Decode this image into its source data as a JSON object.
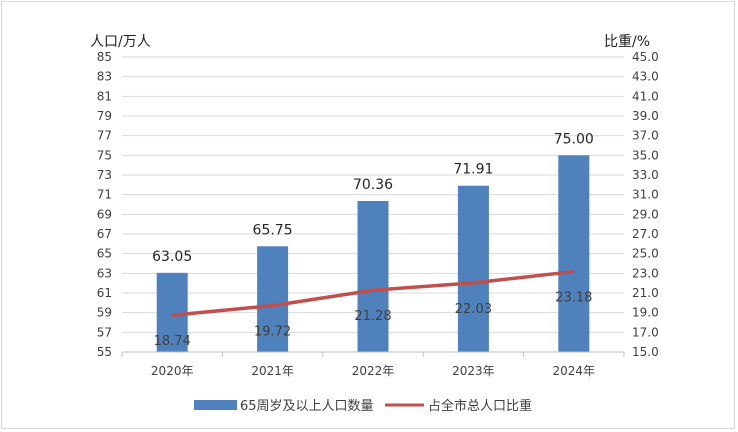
{
  "chart_data": {
    "type": "bar+line",
    "title": "",
    "categories": [
      "2020年",
      "2021年",
      "2022年",
      "2023年",
      "2024年"
    ],
    "series": [
      {
        "name": "65周岁及以上人口数量",
        "type": "bar",
        "axis": "left",
        "values": [
          63.05,
          65.75,
          70.36,
          71.91,
          75.0
        ],
        "labels": [
          "63.05",
          "65.75",
          "70.36",
          "71.91",
          "75.00"
        ],
        "color": "#4f81bd"
      },
      {
        "name": "占全市总人口比重",
        "type": "line",
        "axis": "right",
        "values": [
          18.74,
          19.72,
          21.28,
          22.03,
          23.18
        ],
        "labels": [
          "18.74",
          "19.72",
          "21.28",
          "22.03",
          "23.18"
        ],
        "color": "#c0504d"
      }
    ],
    "y_left": {
      "label": "人口/万人",
      "range": [
        55,
        85
      ],
      "ticks": [
        "55",
        "57",
        "59",
        "61",
        "63",
        "65",
        "67",
        "69",
        "71",
        "73",
        "75",
        "77",
        "79",
        "81",
        "83",
        "85"
      ]
    },
    "y_right": {
      "label": "比重/%",
      "range": [
        15,
        45
      ],
      "ticks": [
        "15.0",
        "17.0",
        "19.0",
        "21.0",
        "23.0",
        "25.0",
        "27.0",
        "29.0",
        "31.0",
        "33.0",
        "35.0",
        "37.0",
        "39.0",
        "41.0",
        "43.0",
        "45.0"
      ]
    },
    "grid": true,
    "legend_position": "bottom"
  }
}
